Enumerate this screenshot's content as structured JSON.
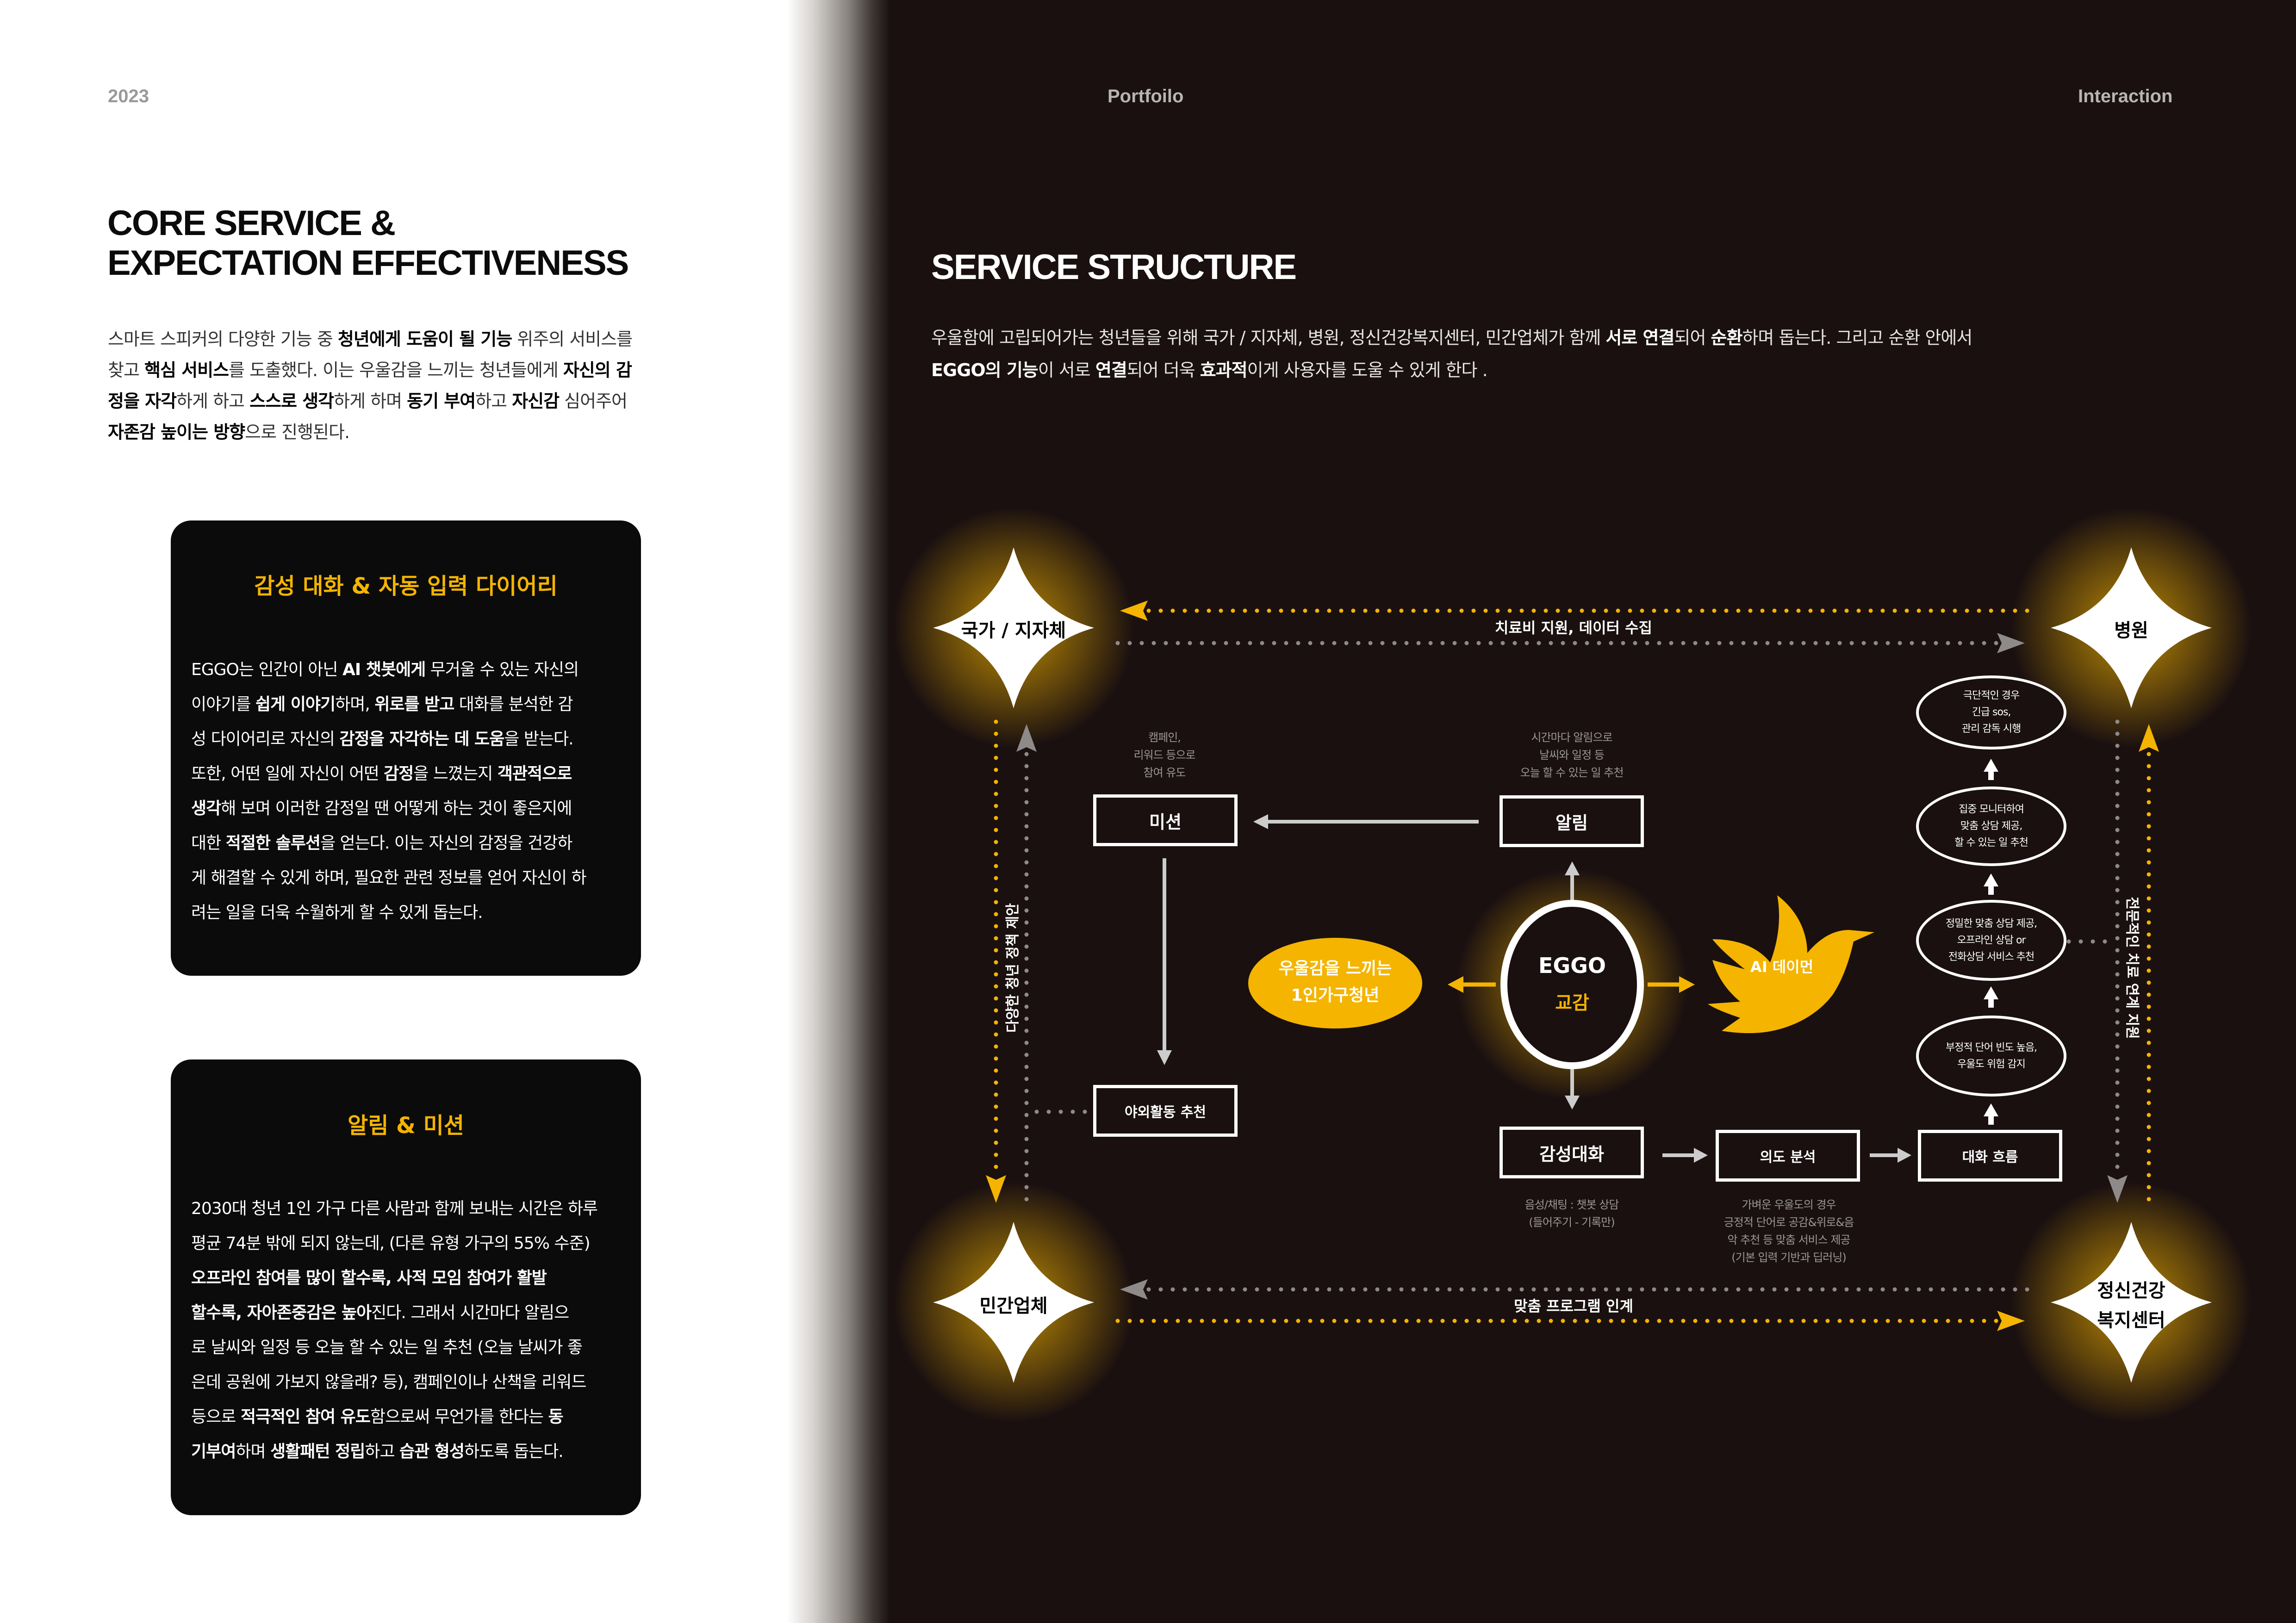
{
  "header": {
    "year": "2023",
    "center": "Portfoilo",
    "right": "Interaction"
  },
  "left": {
    "title_line1": "CORE SERVICE &",
    "title_line2": "EXPECTATION EFFECTIVENESS",
    "intro": [
      [
        [
          "스마트 스피커의 다양한 기능 중 ",
          0
        ],
        [
          "청년에게 도움이 될 기능",
          1
        ],
        [
          " 위주의 서비스를",
          0
        ]
      ],
      [
        [
          "찾고 ",
          0
        ],
        [
          "핵심 서비스",
          1
        ],
        [
          "를 도출했다. 이는 우울감을 느끼는 청년들에게 ",
          0
        ],
        [
          "자신의 감",
          1
        ]
      ],
      [
        [
          "정을 자각",
          1
        ],
        [
          "하게 하고 ",
          0
        ],
        [
          "스스로 생각",
          1
        ],
        [
          "하게 하며 ",
          0
        ],
        [
          "동기 부여",
          1
        ],
        [
          "하고 ",
          0
        ],
        [
          "자신감",
          1
        ],
        [
          " 심어주어",
          0
        ]
      ],
      [
        [
          "자존감 높이는 방향",
          1
        ],
        [
          "으로 진행된다.",
          0
        ]
      ]
    ],
    "card1": {
      "title": "감성 대화 & 자동 입력 다이어리",
      "lines": [
        [
          [
            "EGGO는 인간이 아닌 ",
            0
          ],
          [
            "AI 챗봇에게",
            1
          ],
          [
            " 무거울 수 있는 자신의",
            0
          ]
        ],
        [
          [
            "이야기를 ",
            0
          ],
          [
            "쉽게 이야기",
            1
          ],
          [
            "하며, ",
            0
          ],
          [
            "위로를 받고",
            1
          ],
          [
            " 대화를 분석한 감",
            0
          ]
        ],
        [
          [
            "성 다이어리로 자신의 ",
            0
          ],
          [
            "감정을 자각하는 데 도움",
            1
          ],
          [
            "을 받는다.",
            0
          ]
        ],
        [
          [
            "또한, 어떤 일에 자신이 어떤 ",
            0
          ],
          [
            "감정",
            1
          ],
          [
            "을 느꼈는지 ",
            0
          ],
          [
            "객관적으로",
            1
          ]
        ],
        [
          [
            "생각",
            1
          ],
          [
            "해 보며 이러한 감정일 땐 어떻게 하는 것이 좋은지에",
            0
          ]
        ],
        [
          [
            "대한 ",
            0
          ],
          [
            "적절한 솔루션",
            1
          ],
          [
            "을 얻는다. 이는 자신의 감정을 건강하",
            0
          ]
        ],
        [
          [
            "게 해결할 수 있게 하며, 필요한 관련 정보를 얻어 자신이 하",
            0
          ]
        ],
        [
          [
            "려는 일을 더욱 수월하게 할 수 있게 돕는다.",
            0
          ]
        ]
      ]
    },
    "card2": {
      "title": "알림 & 미션",
      "lines": [
        [
          [
            "2030대 청년 1인 가구 다른 사람과 함께 보내는 시간은 하루",
            0
          ]
        ],
        [
          [
            "평균 74분 밖에 되지 않는데, (다른 유형 가구의 55% 수준)",
            0
          ]
        ],
        [
          [
            "오프라인 참여를 많이 할수록, 사적 모임 참여가 활발",
            1
          ]
        ],
        [
          [
            "할수록, 자아존중감은 높아",
            1
          ],
          [
            "진다. 그래서 시간마다 알림으",
            0
          ]
        ],
        [
          [
            "로 날씨와 일정 등 오늘 할 수 있는 일 추천 (오늘 날씨가 좋",
            0
          ]
        ],
        [
          [
            "은데 공원에 가보지 않을래? 등), 캠페인이나 산책을 리워드",
            0
          ]
        ],
        [
          [
            "등으로 ",
            0
          ],
          [
            "적극적인 참여 유도",
            1
          ],
          [
            "함으로써 무언가를 한다는 ",
            0
          ],
          [
            "동",
            1
          ]
        ],
        [
          [
            "기부여",
            1
          ],
          [
            "하며 ",
            0
          ],
          [
            "생활패턴 정립",
            1
          ],
          [
            "하고 ",
            0
          ],
          [
            "습관 형성",
            1
          ],
          [
            "하도록 돕는다.",
            0
          ]
        ]
      ]
    }
  },
  "right": {
    "title": "SERVICE STRUCTURE",
    "intro": [
      [
        [
          "우울함에 고립되어가는 청년들을 위해 국가 / 지자체, 병원, 정신건강복지센터, 민간업체가 함께 ",
          0
        ],
        [
          "서로 연결",
          1
        ],
        [
          "되어 ",
          0
        ],
        [
          "순환",
          1
        ],
        [
          "하며 돕는다. 그리고 순환 안에서",
          0
        ]
      ],
      [
        [
          "EGGO의 기능",
          1
        ],
        [
          "이 서로 ",
          0
        ],
        [
          "연결",
          1
        ],
        [
          "되어 더욱 ",
          0
        ],
        [
          "효과적",
          1
        ],
        [
          "이게 사용자를 도울 수 있게 한다 .",
          0
        ]
      ]
    ]
  },
  "diagram": {
    "corners": {
      "top_left": "국가 / 지자체",
      "top_right": "병원",
      "bottom_left": "민간업체",
      "bottom_right_l1": "정신건강",
      "bottom_right_l2": "복지센터"
    },
    "edge_labels": {
      "top": "치료비 지원, 데이터 수집",
      "bottom": "맞춤 프로그램 인계",
      "left": "다양한 청년 정책 제안",
      "right": "전문적인 치료 연계 지원"
    },
    "center": {
      "title": "EGGO",
      "subtitle": "교감"
    },
    "user_l1": "우울감을 느끼는",
    "user_l2": "1인가구청년",
    "ai_label": "AI 데이먼",
    "boxes": {
      "mission": "미션",
      "alarm": "알림",
      "outdoor": "야외활동 추천",
      "chat": "감성대화",
      "intent": "의도 분석",
      "flow": "대화 흐름"
    },
    "notes": {
      "mission": [
        "캠페인,",
        "리워드 등으로",
        "참여 유도"
      ],
      "alarm": [
        "시간마다 알림으로",
        "날씨와 일정 등",
        "오늘 할 수 있는 일 추천"
      ],
      "chat": [
        "음성/채팅 : 챗봇 상담",
        "(들어주기 - 기록만)"
      ],
      "intent": [
        "가벼운 우울도의 경우",
        "긍정적 단어로 공감&위로&음",
        "악 추천 등 맞춤 서비스 제공",
        "(기본 입력 기반과 딥러닝)"
      ]
    },
    "ovals": {
      "o1": [
        "극단적인 경우",
        "긴급 sos,",
        "관리 감독 시행"
      ],
      "o2": [
        "집중 모니터하여",
        "맞춤 상담 제공,",
        "할 수 있는 일 추천"
      ],
      "o3": [
        "정밀한 맞춤 상담 제공,",
        "오프라인 상담 or",
        "전화상담 서비스 추천"
      ],
      "o4": [
        "부정적 단어 빈도 높음,",
        "우울도 위험 감지"
      ]
    },
    "colors": {
      "accent": "#f4b400",
      "background": "#1a1010",
      "line": "#ffffff",
      "gray": "#8f8a8a"
    }
  }
}
